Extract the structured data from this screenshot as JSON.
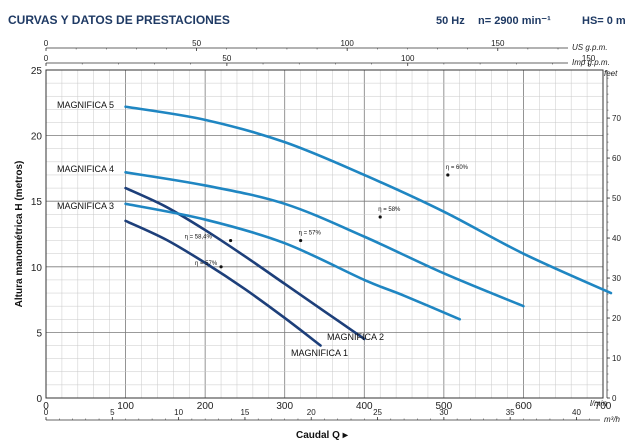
{
  "header": {
    "title": "CURVAS Y DATOS DE PRESTACIONES",
    "freq": "50 Hz",
    "speed": "n= 2900 min⁻¹",
    "hs": "HS= 0 m"
  },
  "chart_data": {
    "type": "line",
    "xlabel": "Caudal Q",
    "ylabel": "Altura manométrica H (metros)",
    "x_unit": "l/min",
    "x_unit2": "m³/h",
    "top_unit1": "US g.p.m.",
    "top_unit2": "Imp g.p.m.",
    "right_unit": "feet",
    "xlim": [
      0,
      700
    ],
    "ylim": [
      0,
      25
    ],
    "x_ticks": [
      0,
      100,
      200,
      300,
      400,
      500,
      600,
      700
    ],
    "y_ticks": [
      0,
      5,
      10,
      15,
      20,
      25
    ],
    "m3h_ticks": [
      0,
      5,
      10,
      15,
      20,
      25,
      30,
      35,
      40
    ],
    "usgpm_ticks": [
      0,
      50,
      100,
      150
    ],
    "impgpm_ticks": [
      0,
      50,
      100,
      150
    ],
    "feet_ticks": [
      0,
      10,
      20,
      30,
      40,
      50,
      60,
      70
    ],
    "series": [
      {
        "name": "MAGNIFICA 1",
        "color": "#1d3f7a",
        "x": [
          100,
          150,
          200,
          250,
          300,
          345
        ],
        "y": [
          13.5,
          12.1,
          10.3,
          8.3,
          6.1,
          4.0
        ],
        "efficiency": {
          "label": "η = 57%",
          "x": 220,
          "y": 10.0
        }
      },
      {
        "name": "MAGNIFICA 2",
        "color": "#1d3f7a",
        "x": [
          100,
          150,
          200,
          250,
          300,
          350,
          400
        ],
        "y": [
          16.0,
          14.6,
          12.8,
          10.8,
          8.7,
          6.6,
          4.5
        ],
        "efficiency": {
          "label": "η = 58,4%",
          "x": 232,
          "y": 12.0
        }
      },
      {
        "name": "MAGNIFICA 3",
        "color": "#1f86c2",
        "x": [
          100,
          200,
          300,
          400,
          450,
          520
        ],
        "y": [
          14.8,
          13.6,
          11.8,
          9.0,
          7.8,
          6.0
        ],
        "efficiency": {
          "label": "η = 57%",
          "x": 320,
          "y": 12.0
        }
      },
      {
        "name": "MAGNIFICA 4",
        "color": "#1f86c2",
        "x": [
          100,
          200,
          300,
          400,
          500,
          600
        ],
        "y": [
          17.2,
          16.2,
          14.8,
          12.3,
          9.5,
          7.0
        ],
        "efficiency": {
          "label": "η = 58%",
          "x": 420,
          "y": 13.8
        }
      },
      {
        "name": "MAGNIFICA 5",
        "color": "#1f86c2",
        "x": [
          100,
          200,
          300,
          400,
          500,
          600,
          710
        ],
        "y": [
          22.2,
          21.2,
          19.5,
          17.0,
          14.2,
          11.0,
          8.0
        ],
        "efficiency": {
          "label": "η = 60%",
          "x": 505,
          "y": 17.0
        }
      }
    ]
  }
}
